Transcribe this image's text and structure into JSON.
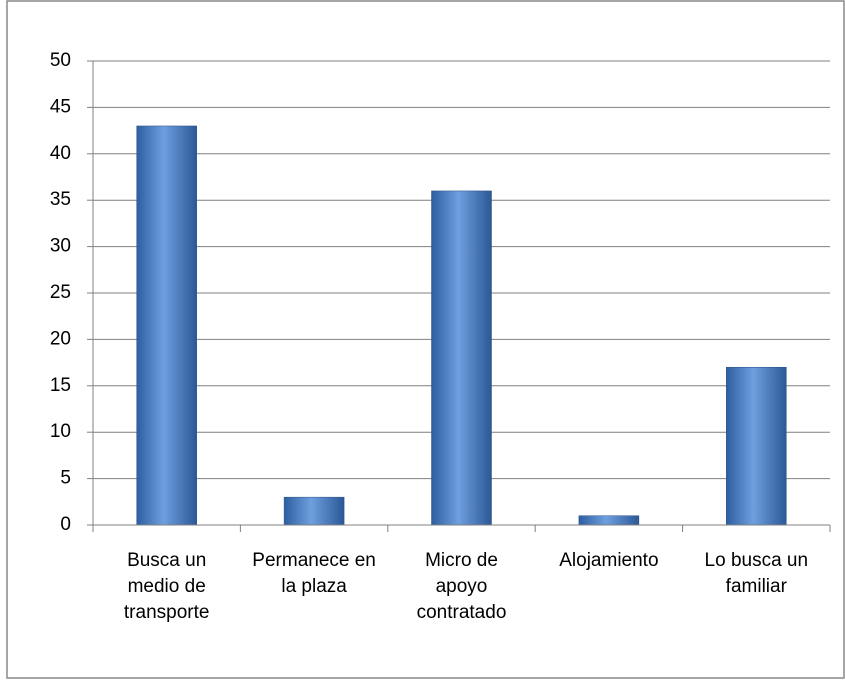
{
  "chart_data": {
    "type": "bar",
    "categories": [
      "Busca un medio de transporte",
      "Permanece en la plaza",
      "Micro de apoyo contratado",
      "Alojamiento",
      "Lo busca un familiar"
    ],
    "values": [
      43,
      3,
      36,
      1,
      17
    ],
    "color": "#4f81bd",
    "ylim": [
      0,
      50
    ],
    "yticks": [
      0,
      5,
      10,
      15,
      20,
      25,
      30,
      35,
      40,
      45,
      50
    ],
    "grid": true
  }
}
